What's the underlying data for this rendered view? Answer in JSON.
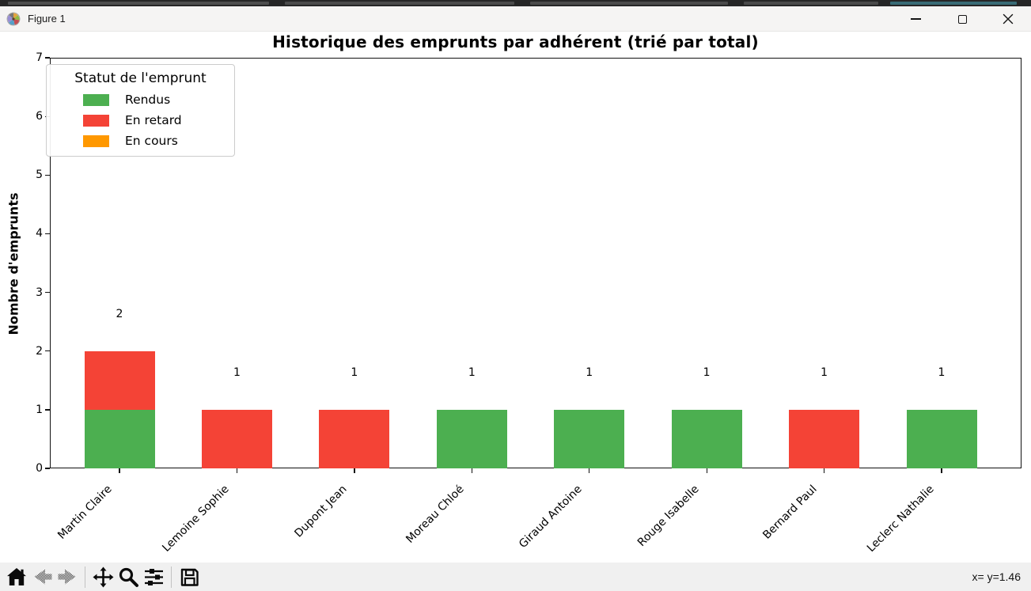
{
  "window": {
    "title": "Figure 1"
  },
  "toolbar": {
    "buttons": [
      "home",
      "back",
      "forward",
      "pan",
      "zoom-to-rect",
      "configure-subplots",
      "save"
    ],
    "disabled_buttons": [
      "back",
      "forward"
    ],
    "status": "x= y=1.46"
  },
  "chart_data": {
    "type": "bar",
    "stacked": true,
    "title": "Historique des emprunts par adhérent (trié par total)",
    "xlabel": "",
    "ylabel": "Nombre d'emprunts",
    "ylim": [
      0,
      7
    ],
    "yticks": [
      0,
      1,
      2,
      3,
      4,
      5,
      6,
      7
    ],
    "grid": false,
    "categories": [
      "Martin Claire",
      "Lemoine Sophie",
      "Dupont Jean",
      "Moreau Chloé",
      "Giraud Antoine",
      "Rouge Isabelle",
      "Bernard Paul",
      "Leclerc Nathalie"
    ],
    "series": [
      {
        "name": "Rendus",
        "color": "#4caf50",
        "values": [
          1,
          0,
          0,
          1,
          1,
          1,
          0,
          1
        ]
      },
      {
        "name": "En retard",
        "color": "#f44336",
        "values": [
          1,
          1,
          1,
          0,
          0,
          0,
          1,
          0
        ]
      },
      {
        "name": "En cours",
        "color": "#ff9800",
        "values": [
          0,
          0,
          0,
          0,
          0,
          0,
          0,
          0
        ]
      }
    ],
    "bar_totals": [
      "2",
      "1",
      "1",
      "1",
      "1",
      "1",
      "1",
      "1"
    ],
    "legend": {
      "title": "Statut de l'emprunt",
      "position": "upper left"
    }
  }
}
